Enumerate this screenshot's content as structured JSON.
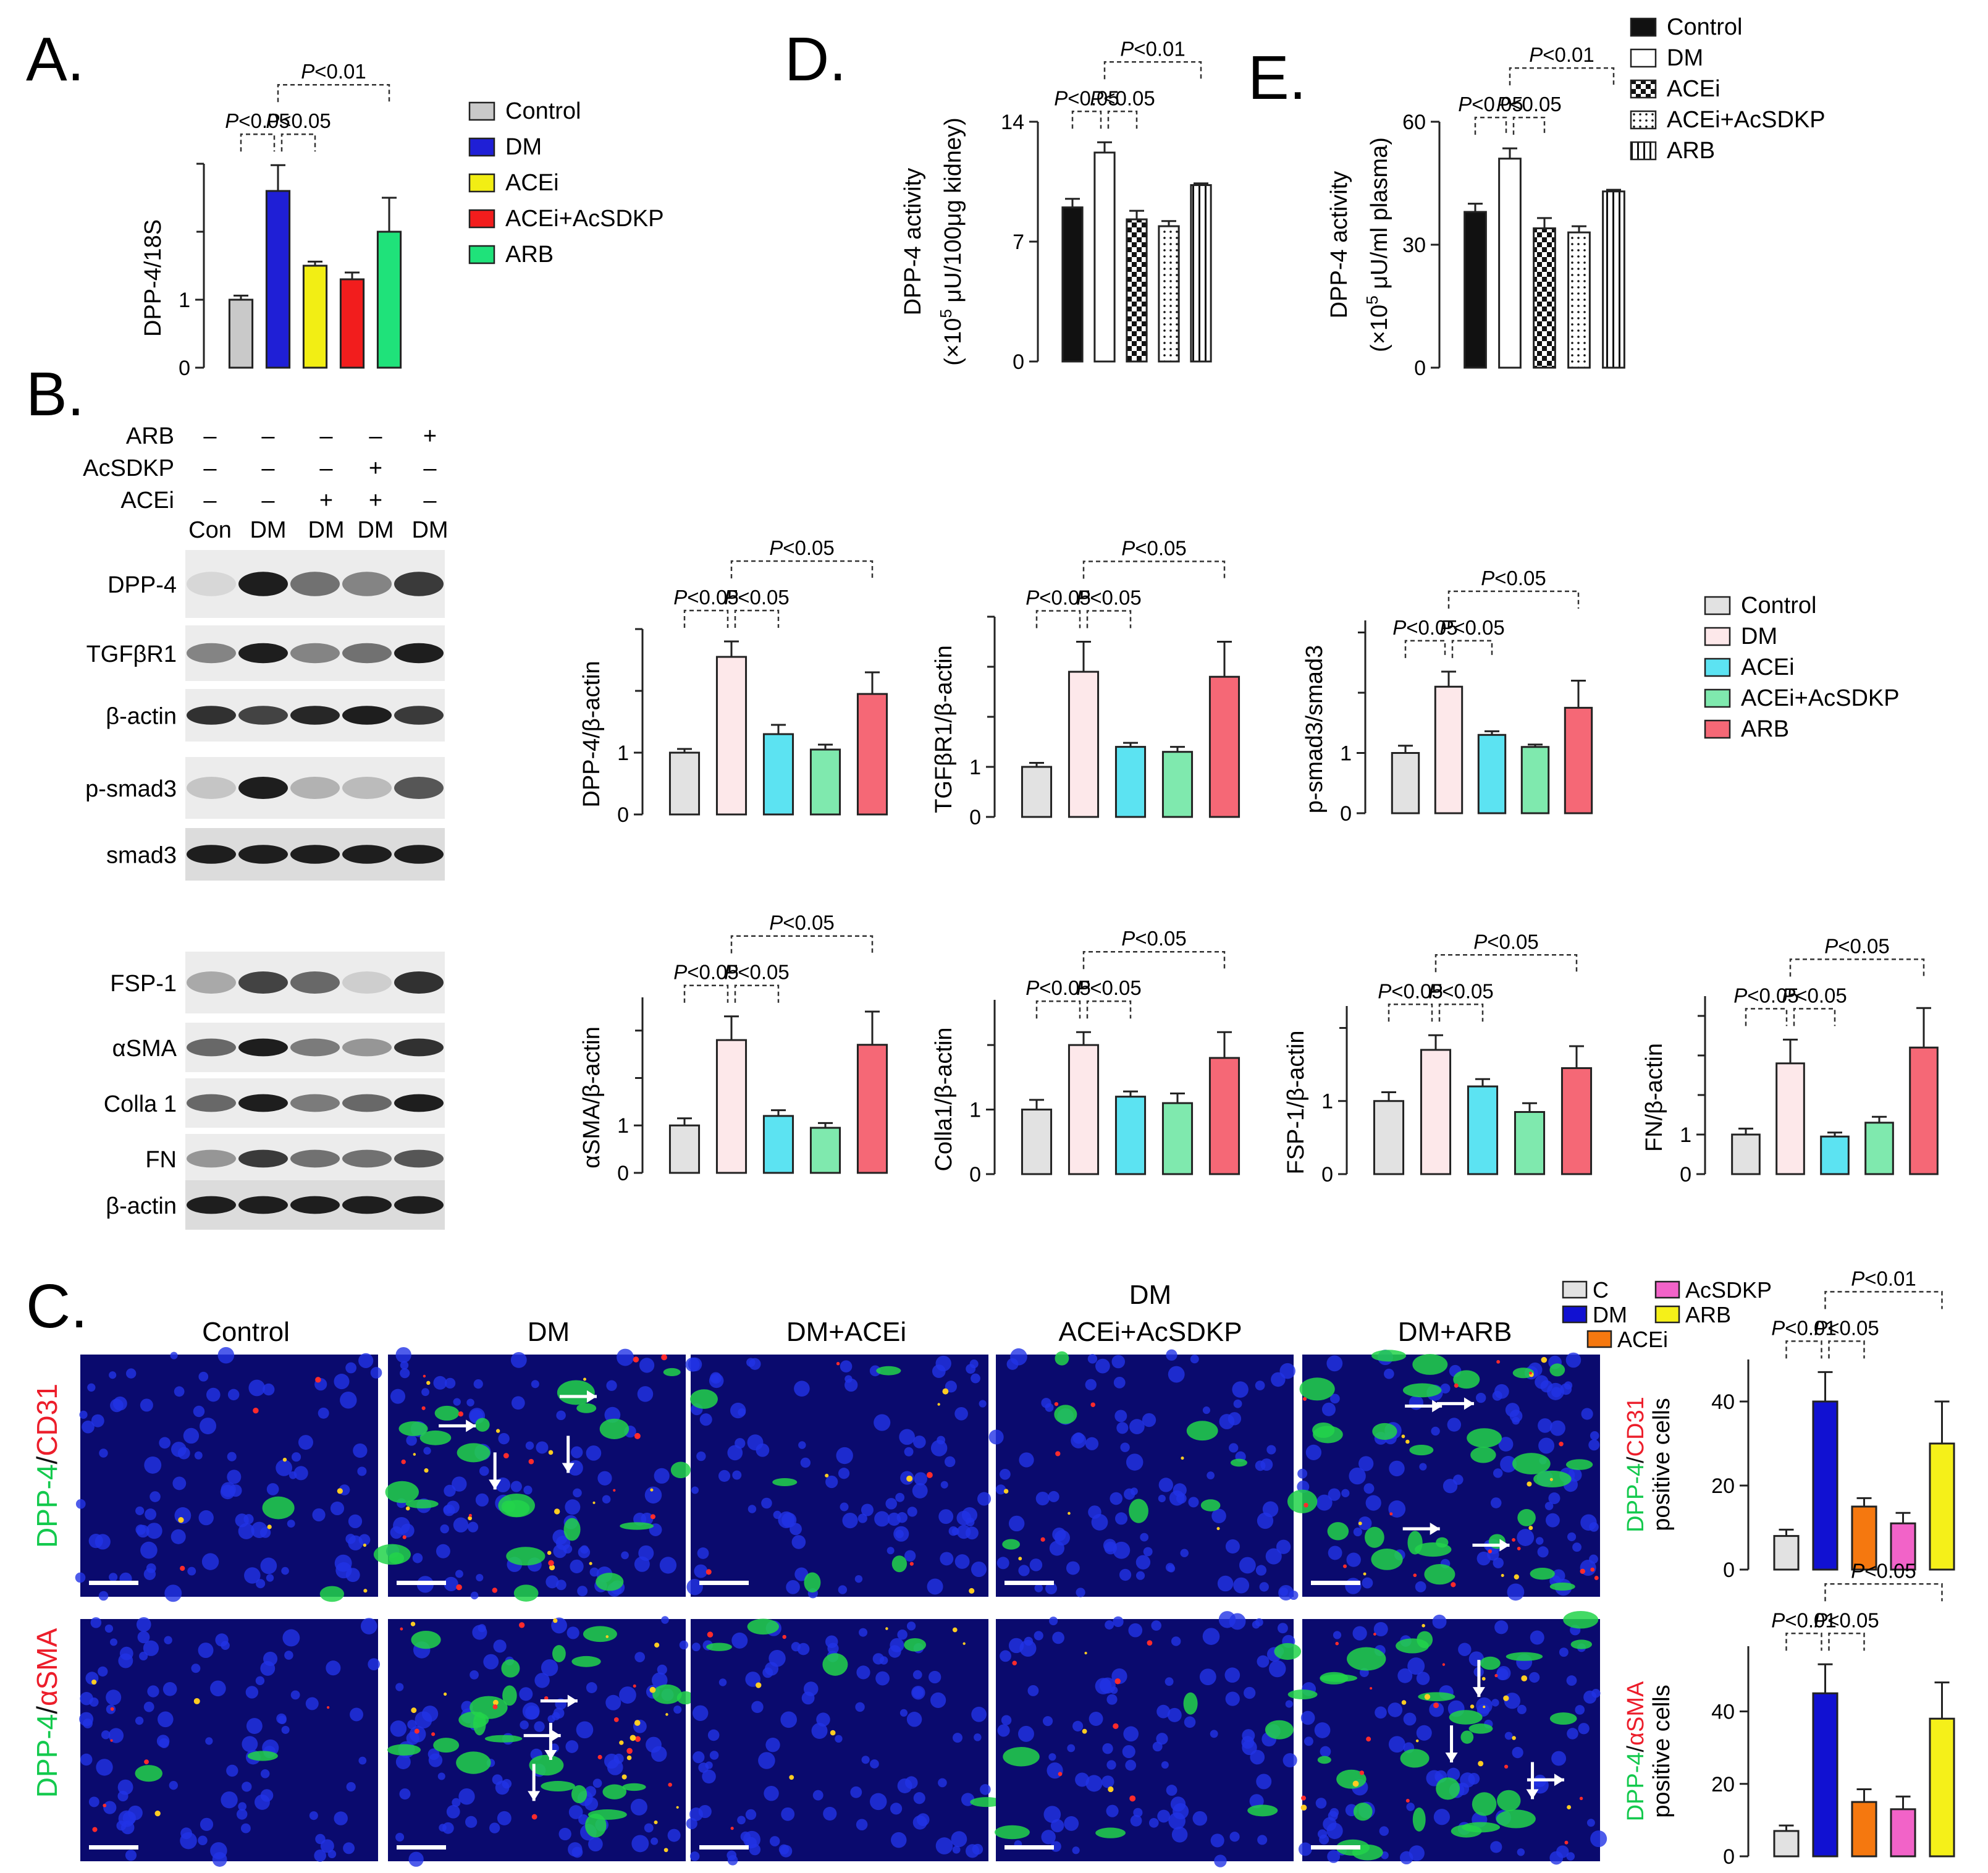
{
  "panel_labels": [
    "A.",
    "B.",
    "C.",
    "D.",
    "E."
  ],
  "colors": {
    "A": {
      "Control": "#c9c9c9",
      "DM": "#1f1fd6",
      "ACEi": "#f2ee14",
      "ACEi+AcSDKP": "#f21d1d",
      "ARB": "#1fe27a"
    },
    "B": {
      "Control": "#e2e2e2",
      "DM": "#fde8ea",
      "ACEi": "#5ce3f2",
      "ACEi+AcSDKP": "#7fe9ae",
      "ARB": "#f56876"
    },
    "C": {
      "C": "#e2e2e2",
      "DM": "#1111d2",
      "ACEi": "#f5780f",
      "AcSDKP": "#f263c8",
      "ARB": "#f5f019"
    }
  },
  "legends": {
    "A": [
      "Control",
      "DM",
      "ACEi",
      "ACEi+AcSDKP",
      "ARB"
    ],
    "DE": [
      "Control",
      "DM",
      "ACEi",
      "ACEi+AcSDKP",
      "ARB"
    ],
    "B": [
      "Control",
      "DM",
      "ACEi",
      "ACEi+AcSDKP",
      "ARB"
    ],
    "C": [
      "C",
      "DM",
      "ACEi",
      "AcSDKP",
      "ARB"
    ]
  },
  "western_blot": {
    "treatments": [
      {
        "name": "ARB",
        "marks": [
          "–",
          "–",
          "–",
          "–",
          "+"
        ]
      },
      {
        "name": "AcSDKP",
        "marks": [
          "–",
          "–",
          "–",
          "+",
          "–"
        ]
      },
      {
        "name": "ACEi",
        "marks": [
          "–",
          "–",
          "+",
          "+",
          "–"
        ]
      }
    ],
    "lanes": [
      "Con",
      "DM",
      "DM",
      "DM",
      "DM"
    ],
    "blots": [
      "DPP-4",
      "TGFβR1",
      "β-actin",
      "p-smad3",
      "smad3",
      "FSP-1",
      "αSMA",
      "Colla 1",
      "FN",
      "β-actin"
    ]
  },
  "micrograph": {
    "columns": [
      "Control",
      "DM",
      "DM+ACEi",
      "DM",
      "ACEi+AcSDKP",
      "DM+ARB"
    ],
    "rows": [
      {
        "green": "DPP-4",
        "sep": "/",
        "red": "CD31"
      },
      {
        "green": "DPP-4",
        "sep": "/",
        "red": "αSMA"
      }
    ]
  },
  "chart_data": [
    {
      "id": "A",
      "type": "bar",
      "categories": [
        "Control",
        "DM",
        "ACEi",
        "ACEi+AcSDKP",
        "ARB"
      ],
      "values": [
        1.0,
        2.6,
        1.5,
        1.3,
        2.0
      ],
      "errors": [
        0.06,
        0.38,
        0.06,
        0.1,
        0.5
      ],
      "ylabel": "DPP-4/18S",
      "yticks": [
        0,
        1
      ],
      "ylim": [
        0,
        3.0
      ],
      "comparisons": [
        {
          "a": 0,
          "b": 1,
          "label": "P<0.05"
        },
        {
          "a": 1,
          "b": 2,
          "label": "P<0.05"
        },
        {
          "a": 1,
          "b": 4,
          "label": "P<0.01"
        }
      ]
    },
    {
      "id": "D",
      "type": "bar",
      "categories": [
        "Control",
        "DM",
        "ACEi",
        "ACEi+AcSDKP",
        "ARB"
      ],
      "values": [
        9.0,
        12.2,
        8.3,
        7.9,
        10.3
      ],
      "errors": [
        0.5,
        0.6,
        0.5,
        0.3,
        0.1
      ],
      "ylabel": "DPP-4 activity",
      "ylabel2a": "(×10",
      "ylabel2sup": "5",
      "ylabel2b": " μU/100μg kidney)",
      "yticks": [
        0,
        7,
        14
      ],
      "ylim": [
        0,
        14
      ],
      "comparisons": [
        {
          "a": 0,
          "b": 1,
          "label": "P<0.05"
        },
        {
          "a": 1,
          "b": 2,
          "label": "P<0.05"
        },
        {
          "a": 1,
          "b": 4,
          "label": "P<0.01"
        }
      ]
    },
    {
      "id": "E",
      "type": "bar",
      "categories": [
        "Control",
        "DM",
        "ACEi",
        "ACEi+AcSDKP",
        "ARB"
      ],
      "values": [
        38,
        51,
        34,
        33,
        43
      ],
      "errors": [
        2,
        2.5,
        2.5,
        1.5,
        0.4
      ],
      "ylabel": "DPP-4 activity",
      "ylabel2a": "(×10",
      "ylabel2sup": "5",
      "ylabel2b": " μU/ml plasma)",
      "yticks": [
        0,
        30,
        60
      ],
      "ylim": [
        0,
        60
      ],
      "comparisons": [
        {
          "a": 0,
          "b": 1,
          "label": "P<0.05"
        },
        {
          "a": 1,
          "b": 2,
          "label": "P<0.05"
        },
        {
          "a": 1,
          "b": 4,
          "label": "P<0.01"
        }
      ]
    },
    {
      "id": "B1",
      "type": "bar",
      "categories": [
        "Control",
        "DM",
        "ACEi",
        "ACEi+AcSDKP",
        "ARB"
      ],
      "values": [
        1.0,
        2.55,
        1.3,
        1.05,
        1.95
      ],
      "errors": [
        0.06,
        0.25,
        0.15,
        0.08,
        0.35
      ],
      "ylabel": "DPP-4/β-actin",
      "yticks": [
        0,
        1
      ],
      "ylim": [
        0,
        3.0
      ],
      "comparisons": [
        {
          "a": 0,
          "b": 1,
          "label": "P<0.05"
        },
        {
          "a": 1,
          "b": 2,
          "label": "P<0.05"
        },
        {
          "a": 1,
          "b": 4,
          "label": "P<0.05"
        }
      ]
    },
    {
      "id": "B2",
      "type": "bar",
      "categories": [
        "Control",
        "DM",
        "ACEi",
        "ACEi+AcSDKP",
        "ARB"
      ],
      "values": [
        1.0,
        2.9,
        1.4,
        1.3,
        2.8
      ],
      "errors": [
        0.08,
        0.6,
        0.08,
        0.1,
        0.7
      ],
      "ylabel": "TGFβR1/β-actin",
      "yticks": [
        0,
        1
      ],
      "ylim": [
        0,
        4.0
      ],
      "comparisons": [
        {
          "a": 0,
          "b": 1,
          "label": "P<0.05"
        },
        {
          "a": 1,
          "b": 2,
          "label": "P<0.05"
        },
        {
          "a": 1,
          "b": 4,
          "label": "P<0.05"
        }
      ]
    },
    {
      "id": "B3",
      "type": "bar",
      "categories": [
        "Control",
        "DM",
        "ACEi",
        "ACEi+AcSDKP",
        "ARB"
      ],
      "values": [
        1.0,
        2.1,
        1.3,
        1.1,
        1.75
      ],
      "errors": [
        0.12,
        0.25,
        0.06,
        0.04,
        0.45
      ],
      "ylabel": "p-smad3/smad3",
      "yticks": [
        0,
        1
      ],
      "ylim": [
        0,
        3.2
      ],
      "comparisons": [
        {
          "a": 0,
          "b": 1,
          "label": "P<0.05"
        },
        {
          "a": 1,
          "b": 2,
          "label": "P<0.05"
        },
        {
          "a": 1,
          "b": 4,
          "label": "P<0.05"
        }
      ]
    },
    {
      "id": "B4",
      "type": "bar",
      "categories": [
        "Control",
        "DM",
        "ACEi",
        "ACEi+AcSDKP",
        "ARB"
      ],
      "values": [
        1.0,
        2.8,
        1.2,
        0.95,
        2.7
      ],
      "errors": [
        0.15,
        0.5,
        0.12,
        0.1,
        0.7
      ],
      "ylabel": "αSMA/β-actin",
      "yticks": [
        0,
        1
      ],
      "ylim": [
        0,
        3.7
      ],
      "comparisons": [
        {
          "a": 0,
          "b": 1,
          "label": "P<0.05"
        },
        {
          "a": 1,
          "b": 2,
          "label": "P<0.05"
        },
        {
          "a": 1,
          "b": 4,
          "label": "P<0.05"
        }
      ]
    },
    {
      "id": "B5",
      "type": "bar",
      "categories": [
        "Control",
        "DM",
        "ACEi",
        "ACEi+AcSDKP",
        "ARB"
      ],
      "values": [
        1.0,
        2.0,
        1.2,
        1.1,
        1.8
      ],
      "errors": [
        0.15,
        0.2,
        0.08,
        0.15,
        0.4
      ],
      "ylabel": "Colla1/β-actin",
      "yticks": [
        0,
        1
      ],
      "ylim": [
        0,
        2.7
      ],
      "comparisons": [
        {
          "a": 0,
          "b": 1,
          "label": "P<0.05"
        },
        {
          "a": 1,
          "b": 2,
          "label": "P<0.05"
        },
        {
          "a": 1,
          "b": 4,
          "label": "P<0.05"
        }
      ]
    },
    {
      "id": "B6",
      "type": "bar",
      "categories": [
        "Control",
        "DM",
        "ACEi",
        "ACEi+AcSDKP",
        "ARB"
      ],
      "values": [
        1.0,
        1.7,
        1.2,
        0.85,
        1.45
      ],
      "errors": [
        0.12,
        0.2,
        0.1,
        0.12,
        0.3
      ],
      "ylabel": "FSP-1/β-actin",
      "yticks": [
        0,
        1
      ],
      "ylim": [
        0,
        2.3
      ],
      "comparisons": [
        {
          "a": 0,
          "b": 1,
          "label": "P<0.05"
        },
        {
          "a": 1,
          "b": 2,
          "label": "P<0.05"
        },
        {
          "a": 1,
          "b": 4,
          "label": "P<0.05"
        }
      ]
    },
    {
      "id": "B7",
      "type": "bar",
      "categories": [
        "Control",
        "DM",
        "ACEi",
        "ACEi+AcSDKP",
        "ARB"
      ],
      "values": [
        1.0,
        2.8,
        0.95,
        1.3,
        3.2
      ],
      "errors": [
        0.15,
        0.6,
        0.1,
        0.15,
        1.0
      ],
      "ylabel": "FN/β-actin",
      "yticks": [
        0,
        1
      ],
      "ylim": [
        0,
        4.5
      ],
      "comparisons": [
        {
          "a": 0,
          "b": 1,
          "label": "P<0.05"
        },
        {
          "a": 1,
          "b": 2,
          "label": "P<0.05"
        },
        {
          "a": 1,
          "b": 4,
          "label": "P<0.05"
        }
      ]
    },
    {
      "id": "C1",
      "type": "bar",
      "categories": [
        "C",
        "DM",
        "ACEi",
        "AcSDKP",
        "ARB"
      ],
      "values": [
        8,
        40,
        15,
        11,
        30
      ],
      "errors": [
        1.5,
        7,
        2,
        2.5,
        10
      ],
      "ylabel": "positive cells",
      "ylabel_green": "DPP-4",
      "ylabel_sep": "/",
      "ylabel_red": "CD31",
      "yticks": [
        0,
        20,
        40
      ],
      "ylim": [
        0,
        50
      ],
      "comparisons": [
        {
          "a": 0,
          "b": 1,
          "label": "P<0.01"
        },
        {
          "a": 1,
          "b": 2,
          "label": "P<0.05"
        },
        {
          "a": 1,
          "b": 4,
          "label": "P<0.01"
        }
      ]
    },
    {
      "id": "C2",
      "type": "bar",
      "categories": [
        "C",
        "DM",
        "ACEi",
        "AcSDKP",
        "ARB"
      ],
      "values": [
        7,
        45,
        15,
        13,
        38
      ],
      "errors": [
        1.5,
        8,
        3.5,
        3.5,
        10
      ],
      "ylabel": "positive cells",
      "ylabel_green": "DPP-4",
      "ylabel_sep": "/",
      "ylabel_red": "αSMA",
      "yticks": [
        0,
        20,
        40
      ],
      "ylim": [
        0,
        58
      ],
      "comparisons": [
        {
          "a": 0,
          "b": 1,
          "label": "P<0.01"
        },
        {
          "a": 1,
          "b": 2,
          "label": "P<0.05"
        },
        {
          "a": 1,
          "b": 4,
          "label": "P<0.05"
        }
      ]
    }
  ]
}
